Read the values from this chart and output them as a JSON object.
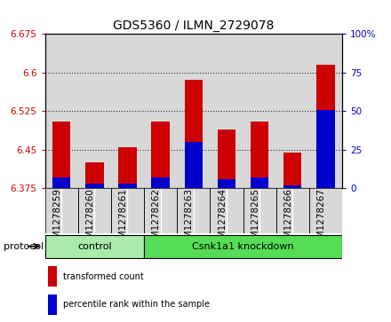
{
  "title": "GDS5360 / ILMN_2729078",
  "samples": [
    "GSM1278259",
    "GSM1278260",
    "GSM1278261",
    "GSM1278262",
    "GSM1278263",
    "GSM1278264",
    "GSM1278265",
    "GSM1278266",
    "GSM1278267"
  ],
  "red_tops": [
    6.505,
    6.425,
    6.455,
    6.505,
    6.585,
    6.49,
    6.505,
    6.445,
    6.615
  ],
  "blue_tops": [
    6.397,
    6.384,
    6.385,
    6.397,
    6.465,
    6.392,
    6.397,
    6.38,
    6.527
  ],
  "bar_base": 6.375,
  "ylim_left": [
    6.375,
    6.675
  ],
  "ylim_right": [
    0,
    100
  ],
  "yticks_left": [
    6.375,
    6.45,
    6.525,
    6.6,
    6.675
  ],
  "ytick_labels_left": [
    "6.375",
    "6.45",
    "6.525",
    "6.6",
    "6.675"
  ],
  "yticks_right": [
    0,
    25,
    50,
    75,
    100
  ],
  "ytick_labels_right": [
    "0",
    "25",
    "50",
    "75",
    "100%"
  ],
  "groups": [
    {
      "label": "control",
      "start": 0,
      "end": 3,
      "color": "#aaeaaa"
    },
    {
      "label": "Csnk1a1 knockdown",
      "start": 3,
      "end": 9,
      "color": "#55dd55"
    }
  ],
  "cell_bg_color": "#d8d8d8",
  "red_color": "#cc0000",
  "blue_color": "#0000cc",
  "bar_width": 0.55,
  "protocol_label": "protocol",
  "legend_items": [
    {
      "label": "transformed count",
      "color": "#cc0000"
    },
    {
      "label": "percentile rank within the sample",
      "color": "#0000cc"
    }
  ],
  "title_fontsize": 10,
  "tick_fontsize": 7.5,
  "label_fontsize": 8,
  "grid_linestyle": "dotted",
  "grid_color": "#333333",
  "grid_linewidth": 0.8
}
